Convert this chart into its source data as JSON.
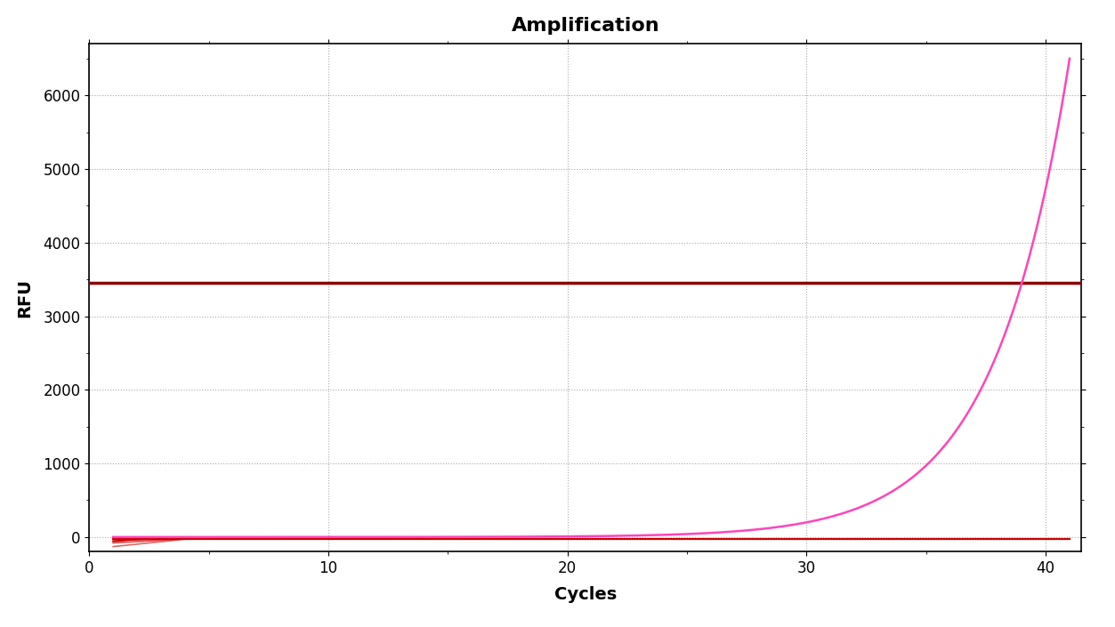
{
  "title": "Amplification",
  "xlabel": "Cycles",
  "ylabel": "RFU",
  "xlim": [
    0,
    41.5
  ],
  "ylim": [
    -200,
    6700
  ],
  "xticks": [
    0,
    10,
    20,
    30,
    40
  ],
  "yticks": [
    0,
    1000,
    2000,
    3000,
    4000,
    5000,
    6000
  ],
  "threshold_y": 3450,
  "threshold_color": "#8B0000",
  "amplification_color": "#FF44BB",
  "baseline_color": "#CC0000",
  "cq": 39,
  "background_color": "#ffffff",
  "title_fontsize": 16,
  "label_fontsize": 14,
  "tick_fontsize": 12,
  "grid_color": "#555555",
  "grid_alpha": 0.5,
  "grid_linestyle": ":"
}
